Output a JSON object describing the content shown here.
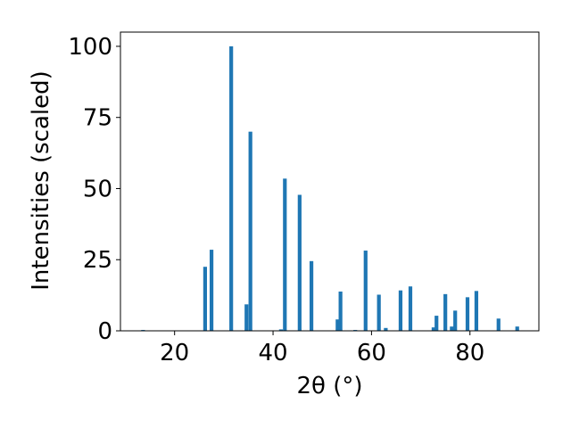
{
  "chart_data": {
    "type": "bar",
    "xlabel": "2θ (°)",
    "ylabel": "Intensities (scaled)",
    "title": "",
    "xlim": [
      9,
      94
    ],
    "ylim": [
      0,
      105
    ],
    "xticks": [
      20,
      40,
      60,
      80
    ],
    "yticks": [
      0,
      25,
      50,
      75,
      100
    ],
    "grid": false,
    "bar_color": "#1f77b4",
    "x": [
      13.6,
      26.2,
      27.5,
      31.5,
      34.6,
      35.4,
      41.6,
      42.4,
      45.4,
      47.8,
      53.1,
      53.7,
      56.7,
      58.8,
      61.5,
      62.9,
      65.9,
      67.9,
      72.6,
      73.2,
      75.0,
      76.3,
      77.0,
      79.5,
      81.3,
      85.8,
      89.6
    ],
    "values": [
      0.3,
      22.5,
      28.5,
      100,
      9.3,
      70,
      0.5,
      53.5,
      47.8,
      24.5,
      4.0,
      13.8,
      0.3,
      28.2,
      12.7,
      1.0,
      14.2,
      15.6,
      1.2,
      5.3,
      12.9,
      1.5,
      7.1,
      11.8,
      14.0,
      4.3,
      1.5
    ]
  }
}
